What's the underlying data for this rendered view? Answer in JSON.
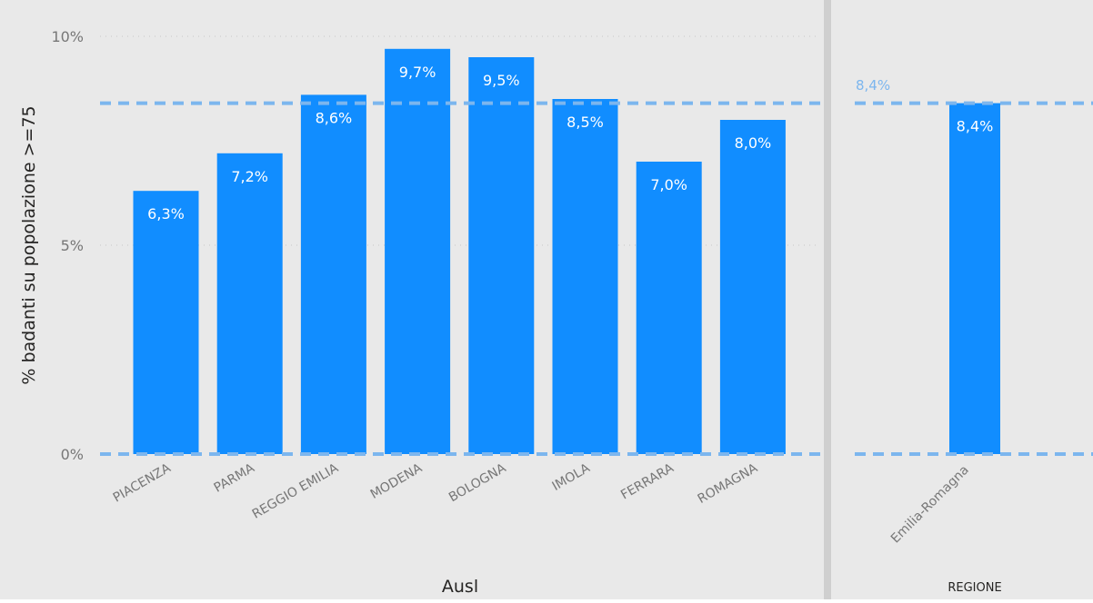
{
  "colors": {
    "bar": "#118DFF",
    "reference_line": "#7CB6EE",
    "panel_bg": "#E9E9E9",
    "divider": "#CFCFCF",
    "gridline": "#C8C8C8",
    "tick_text": "#777777",
    "axis_title": "#252423",
    "bar_label": "#FFFFFF"
  },
  "chart_data": [
    {
      "type": "bar",
      "title": "",
      "xlabel": "Ausl",
      "ylabel": "% badanti su popolazione >=75",
      "yticks": [
        "0%",
        "5%",
        "10%"
      ],
      "ylim": [
        0,
        10
      ],
      "grid": true,
      "reference_line": 8.4,
      "categories": [
        "PIACENZA",
        "PARMA",
        "REGGIO EMILIA",
        "MODENA",
        "BOLOGNA",
        "IMOLA",
        "FERRARA",
        "ROMAGNA"
      ],
      "values": [
        6.3,
        7.2,
        8.6,
        9.7,
        9.5,
        8.5,
        7.0,
        8.0
      ],
      "labels": [
        "6,3%",
        "7,2%",
        "8,6%",
        "9,7%",
        "9,5%",
        "8,5%",
        "7,0%",
        "8,0%"
      ]
    },
    {
      "type": "bar",
      "title": "",
      "xlabel": "REGIONE",
      "ylim": [
        0,
        10
      ],
      "reference_line": 8.4,
      "reference_label": "8,4%",
      "categories": [
        "Emilia-Romagna"
      ],
      "values": [
        8.4
      ],
      "labels": [
        "8,4%"
      ]
    }
  ]
}
